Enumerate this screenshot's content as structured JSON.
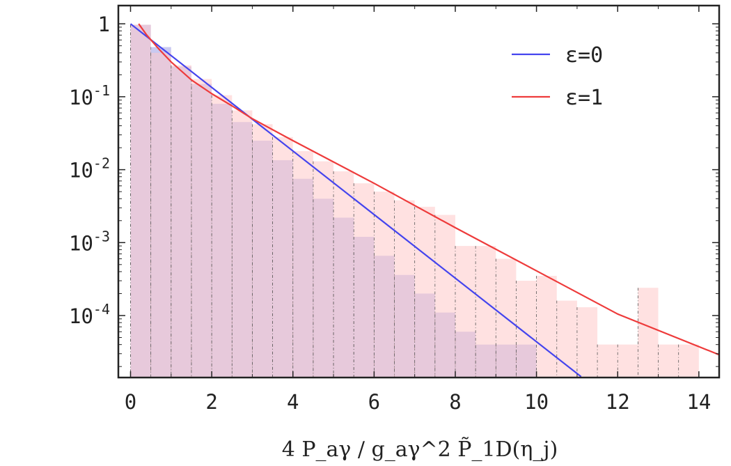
{
  "chart_data": {
    "type": "bar",
    "log_scale_y": true,
    "xlabel": "4 P_aγ / g_aγ^2 P̃_1D(η_j)",
    "xlim": [
      -0.3,
      14.5
    ],
    "ylim_log10": [
      -4.85,
      0.25
    ],
    "x_ticks": [
      0,
      2,
      4,
      6,
      8,
      10,
      12,
      14
    ],
    "y_ticks": [
      {
        "log10": 0,
        "base": "1",
        "exp": ""
      },
      {
        "log10": -1,
        "base": "10",
        "exp": "-1"
      },
      {
        "log10": -2,
        "base": "10",
        "exp": "-2"
      },
      {
        "log10": -3,
        "base": "10",
        "exp": "-3"
      },
      {
        "log10": -4,
        "base": "10",
        "exp": "-4"
      }
    ],
    "bin_width": 0.5,
    "bin_edges_start": 0,
    "histograms": [
      {
        "series": "ε=0",
        "color": "#b7b7ec",
        "values": [
          0.97,
          0.48,
          0.26,
          0.15,
          0.08,
          0.045,
          0.025,
          0.0135,
          0.0075,
          0.004,
          0.0022,
          0.0012,
          0.00066,
          0.00036,
          0.0002,
          0.00011,
          6e-05,
          4e-05,
          4e-05,
          4e-05
        ]
      },
      {
        "series": "ε=1",
        "color": "#ffc8c8",
        "values": [
          0.97,
          0.4,
          0.27,
          0.175,
          0.105,
          0.065,
          0.042,
          0.028,
          0.018,
          0.013,
          0.0095,
          0.0065,
          0.005,
          0.0038,
          0.0031,
          0.0024,
          0.0009,
          0.0009,
          0.0006,
          0.0003,
          0.00035,
          0.00016,
          0.00013,
          4e-05,
          4e-05,
          0.00024,
          4e-05,
          4e-05
        ]
      }
    ],
    "series": [
      {
        "name": "ε=0",
        "color": "#4444ee",
        "x": [
          0,
          11.1
        ],
        "y": [
          1.0,
          1.45e-05
        ]
      },
      {
        "name": "ε=1",
        "color": "#ee3b3b",
        "x": [
          0.2,
          0.4,
          0.7,
          1.0,
          1.5,
          2.0,
          2.5,
          3.0,
          4.0,
          6.0,
          8.0,
          10.0,
          12.0,
          14.5
        ],
        "y": [
          1.0,
          0.7,
          0.45,
          0.3,
          0.17,
          0.11,
          0.075,
          0.05,
          0.025,
          0.0065,
          0.0016,
          0.00041,
          0.000105,
          2.9e-05
        ]
      }
    ],
    "legend": {
      "position": "top-right",
      "entries": [
        {
          "label": "ε=0",
          "color": "#4444ee"
        },
        {
          "label": "ε=1",
          "color": "#ee3b3b"
        }
      ]
    }
  }
}
